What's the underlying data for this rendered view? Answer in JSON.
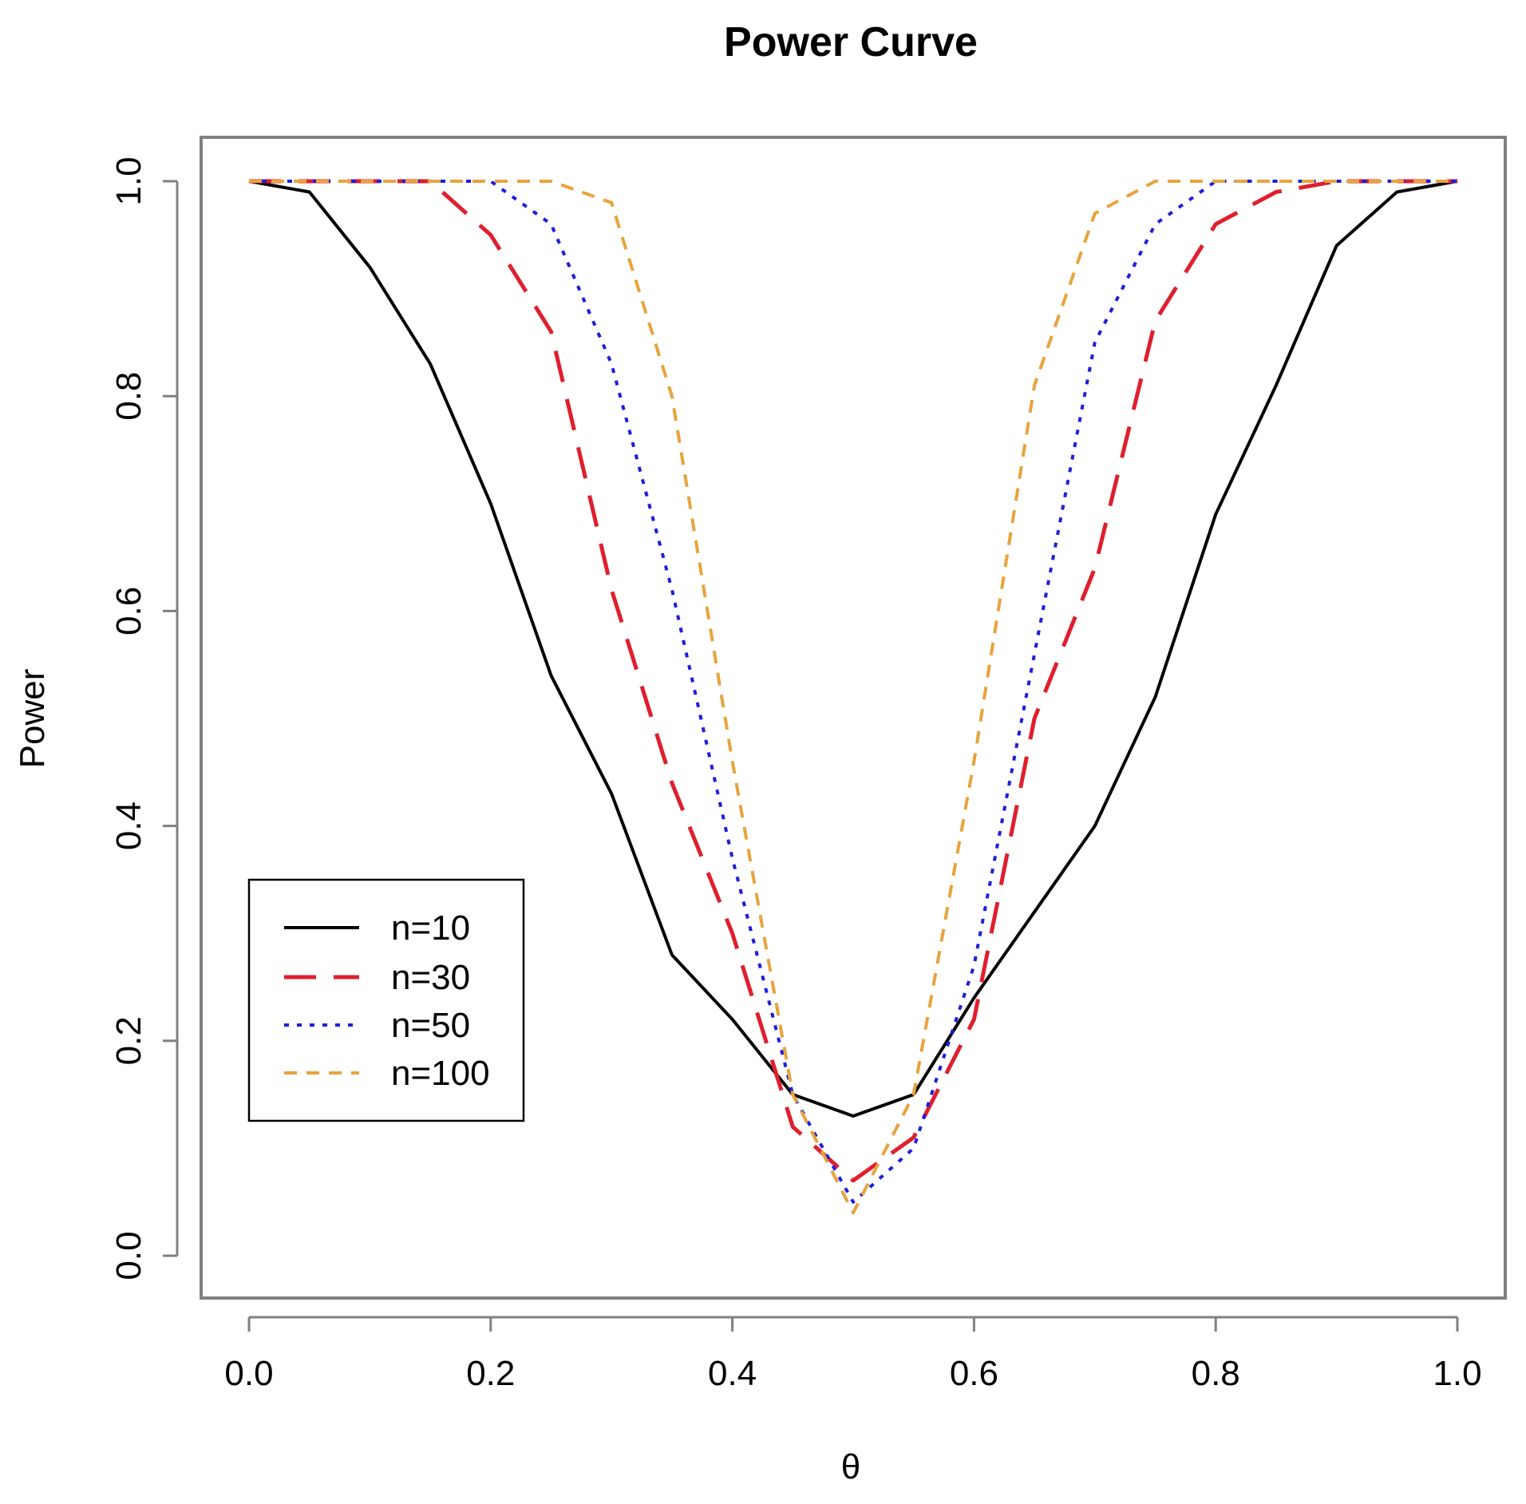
{
  "chart_data": {
    "type": "line",
    "title": "Power Curve",
    "xlabel": "θ",
    "ylabel": "Power",
    "xlim": [
      0.0,
      1.0
    ],
    "ylim": [
      0.0,
      1.0
    ],
    "grid": false,
    "legend_position": "bottom-left",
    "x_ticks": [
      "0.0",
      "0.2",
      "0.4",
      "0.6",
      "0.8",
      "1.0"
    ],
    "y_ticks": [
      "0.0",
      "0.2",
      "0.4",
      "0.6",
      "0.8",
      "1.0"
    ],
    "x": [
      0.0,
      0.05,
      0.1,
      0.15,
      0.2,
      0.25,
      0.3,
      0.35,
      0.4,
      0.45,
      0.5,
      0.55,
      0.6,
      0.65,
      0.7,
      0.75,
      0.8,
      0.85,
      0.9,
      0.95,
      1.0
    ],
    "series": [
      {
        "name": "n=10",
        "color": "#000000",
        "style": "solid",
        "values": [
          1.0,
          0.99,
          0.92,
          0.83,
          0.7,
          0.54,
          0.43,
          0.28,
          0.22,
          0.15,
          0.13,
          0.15,
          0.24,
          0.32,
          0.4,
          0.52,
          0.69,
          0.81,
          0.94,
          0.99,
          1.0
        ]
      },
      {
        "name": "n=30",
        "color": "#DF1F2D",
        "style": "dashed",
        "values": [
          1.0,
          1.0,
          1.0,
          1.0,
          0.95,
          0.86,
          0.62,
          0.44,
          0.3,
          0.12,
          0.07,
          0.11,
          0.22,
          0.5,
          0.64,
          0.87,
          0.96,
          0.99,
          1.0,
          1.0,
          1.0
        ]
      },
      {
        "name": "n=50",
        "color": "#1E1ED9",
        "style": "dotted",
        "values": [
          1.0,
          1.0,
          1.0,
          1.0,
          1.0,
          0.96,
          0.83,
          0.62,
          0.37,
          0.15,
          0.05,
          0.1,
          0.27,
          0.56,
          0.85,
          0.96,
          1.0,
          1.0,
          1.0,
          1.0,
          1.0
        ]
      },
      {
        "name": "n=100",
        "color": "#E8A33D",
        "style": "dashed-short",
        "values": [
          1.0,
          1.0,
          1.0,
          1.0,
          1.0,
          1.0,
          0.98,
          0.8,
          0.46,
          0.15,
          0.04,
          0.15,
          0.46,
          0.81,
          0.97,
          1.0,
          1.0,
          1.0,
          1.0,
          1.0,
          1.0
        ]
      }
    ]
  }
}
